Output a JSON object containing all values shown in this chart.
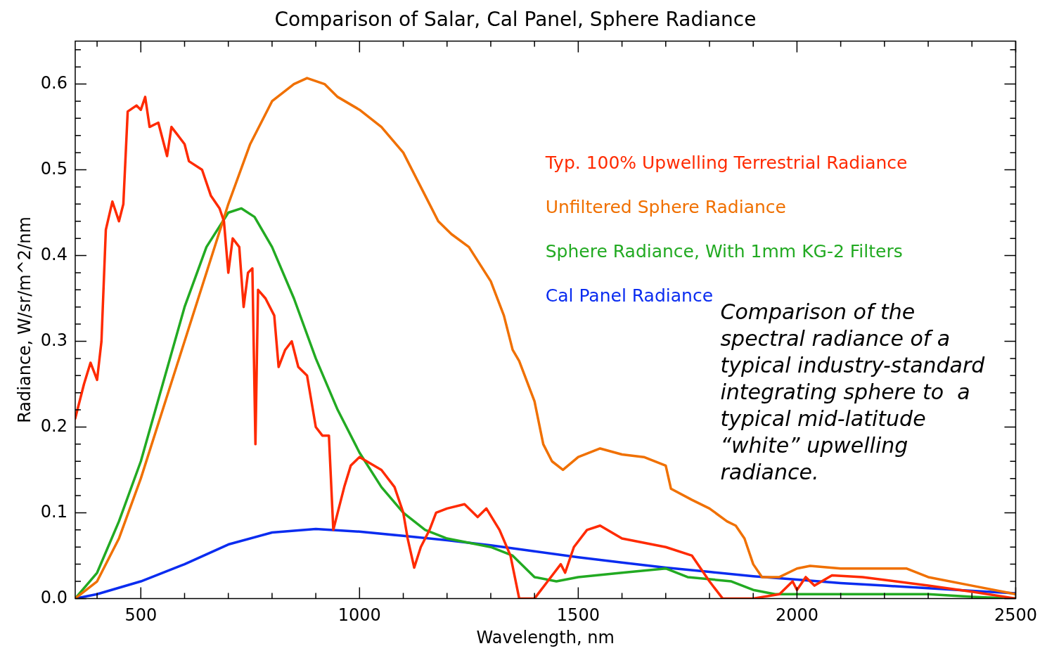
{
  "chart_data": {
    "type": "line",
    "title": "Comparison of Salar, Cal Panel, Sphere Radiance",
    "xlabel": "Wavelength, nm",
    "ylabel": "Radiance, W/sr/m^2/nm",
    "xlim": [
      350,
      2500
    ],
    "xticks": [
      {
        "value": 400,
        "label": null
      },
      {
        "value": 500,
        "label": "500"
      },
      {
        "value": 600,
        "label": null
      },
      {
        "value": 700,
        "label": null
      },
      {
        "value": 800,
        "label": null
      },
      {
        "value": 900,
        "label": null
      },
      {
        "value": 1000,
        "label": "1000"
      },
      {
        "value": 1100,
        "label": null
      },
      {
        "value": 1200,
        "label": null
      },
      {
        "value": 1300,
        "label": null
      },
      {
        "value": 1400,
        "label": null
      },
      {
        "value": 1500,
        "label": "1500"
      },
      {
        "value": 1600,
        "label": null
      },
      {
        "value": 1700,
        "label": null
      },
      {
        "value": 1800,
        "label": null
      },
      {
        "value": 1900,
        "label": null
      },
      {
        "value": 2000,
        "label": "2000"
      },
      {
        "value": 2100,
        "label": null
      },
      {
        "value": 2200,
        "label": null
      },
      {
        "value": 2300,
        "label": null
      },
      {
        "value": 2400,
        "label": null
      },
      {
        "value": 2500,
        "label": "2500"
      }
    ],
    "ylim": [
      0,
      0.65
    ],
    "yticks": [
      {
        "value": 0,
        "label": "0.0"
      },
      {
        "value": 0.02,
        "label": null
      },
      {
        "value": 0.04,
        "label": null
      },
      {
        "value": 0.06,
        "label": null
      },
      {
        "value": 0.08,
        "label": null
      },
      {
        "value": 0.1,
        "label": "0.1"
      },
      {
        "value": 0.12,
        "label": null
      },
      {
        "value": 0.14,
        "label": null
      },
      {
        "value": 0.16,
        "label": null
      },
      {
        "value": 0.18,
        "label": null
      },
      {
        "value": 0.2,
        "label": "0.2"
      },
      {
        "value": 0.22,
        "label": null
      },
      {
        "value": 0.24,
        "label": null
      },
      {
        "value": 0.26,
        "label": null
      },
      {
        "value": 0.28,
        "label": null
      },
      {
        "value": 0.3,
        "label": "0.3"
      },
      {
        "value": 0.32,
        "label": null
      },
      {
        "value": 0.34,
        "label": null
      },
      {
        "value": 0.36,
        "label": null
      },
      {
        "value": 0.38,
        "label": null
      },
      {
        "value": 0.4,
        "label": "0.4"
      },
      {
        "value": 0.42,
        "label": null
      },
      {
        "value": 0.44,
        "label": null
      },
      {
        "value": 0.46,
        "label": null
      },
      {
        "value": 0.48,
        "label": null
      },
      {
        "value": 0.5,
        "label": "0.5"
      },
      {
        "value": 0.52,
        "label": null
      },
      {
        "value": 0.54,
        "label": null
      },
      {
        "value": 0.56,
        "label": null
      },
      {
        "value": 0.58,
        "label": null
      },
      {
        "value": 0.6,
        "label": "0.6"
      },
      {
        "value": 0.62,
        "label": null
      },
      {
        "value": 0.64,
        "label": null
      }
    ],
    "grid": false,
    "legend": "top right",
    "marker": "none",
    "line_style": "solid",
    "annotations": [
      "Comparison of the spectral radiance of a typical industry-standard integrating sphere to  a typical mid-latitude “white” upwelling radiance."
    ],
    "series": [
      {
        "name": "Typ. 100% Upwelling Terrestrial Radiance",
        "color": "#ff2a00",
        "x": [
          350,
          370,
          385,
          400,
          410,
          420,
          435,
          450,
          460,
          470,
          490,
          500,
          510,
          520,
          540,
          560,
          570,
          600,
          610,
          640,
          660,
          680,
          690,
          700,
          710,
          725,
          735,
          745,
          755,
          762,
          768,
          785,
          805,
          815,
          830,
          845,
          860,
          880,
          900,
          915,
          930,
          940,
          950,
          965,
          980,
          1000,
          1050,
          1080,
          1100,
          1110,
          1125,
          1140,
          1160,
          1175,
          1200,
          1240,
          1270,
          1290,
          1320,
          1345,
          1365,
          1400,
          1430,
          1460,
          1470,
          1490,
          1520,
          1550,
          1600,
          1700,
          1760,
          1800,
          1830,
          1900,
          1960,
          1990,
          2000,
          2020,
          2040,
          2080,
          2150,
          2300,
          2400,
          2500
        ],
        "values": [
          0.21,
          0.25,
          0.275,
          0.255,
          0.3,
          0.43,
          0.463,
          0.44,
          0.46,
          0.568,
          0.575,
          0.57,
          0.585,
          0.55,
          0.555,
          0.516,
          0.55,
          0.53,
          0.51,
          0.5,
          0.47,
          0.455,
          0.44,
          0.38,
          0.42,
          0.41,
          0.34,
          0.38,
          0.385,
          0.18,
          0.36,
          0.35,
          0.33,
          0.27,
          0.29,
          0.3,
          0.27,
          0.26,
          0.2,
          0.19,
          0.19,
          0.08,
          0.1,
          0.13,
          0.155,
          0.165,
          0.15,
          0.13,
          0.1,
          0.07,
          0.036,
          0.06,
          0.08,
          0.1,
          0.105,
          0.11,
          0.095,
          0.105,
          0.08,
          0.05,
          0,
          0,
          0.02,
          0.04,
          0.03,
          0.06,
          0.08,
          0.085,
          0.07,
          0.06,
          0.05,
          0.02,
          0,
          0,
          0.005,
          0.02,
          0.01,
          0.025,
          0.015,
          0.027,
          0.025,
          0.015,
          0.008,
          0
        ]
      },
      {
        "name": "Unfiltered Sphere Radiance",
        "color": "#f07000",
        "x": [
          350,
          400,
          450,
          500,
          550,
          600,
          650,
          700,
          750,
          800,
          850,
          880,
          920,
          950,
          1000,
          1050,
          1100,
          1150,
          1180,
          1210,
          1250,
          1300,
          1330,
          1350,
          1365,
          1400,
          1420,
          1440,
          1465,
          1500,
          1550,
          1600,
          1650,
          1700,
          1712,
          1760,
          1800,
          1840,
          1860,
          1880,
          1900,
          1920,
          1960,
          2000,
          2030,
          2100,
          2250,
          2300,
          2400,
          2500
        ],
        "values": [
          0,
          0.02,
          0.07,
          0.14,
          0.22,
          0.3,
          0.38,
          0.46,
          0.53,
          0.58,
          0.6,
          0.607,
          0.6,
          0.585,
          0.57,
          0.55,
          0.52,
          0.47,
          0.44,
          0.425,
          0.41,
          0.37,
          0.33,
          0.29,
          0.277,
          0.23,
          0.18,
          0.16,
          0.15,
          0.165,
          0.175,
          0.168,
          0.165,
          0.155,
          0.128,
          0.115,
          0.105,
          0.09,
          0.085,
          0.07,
          0.04,
          0.025,
          0.025,
          0.035,
          0.038,
          0.035,
          0.035,
          0.025,
          0.015,
          0.005
        ]
      },
      {
        "name": "Sphere Radiance, With 1mm KG-2 Filters",
        "color": "#22aa22",
        "x": [
          350,
          400,
          450,
          500,
          550,
          600,
          650,
          700,
          730,
          760,
          800,
          850,
          900,
          950,
          1000,
          1050,
          1100,
          1150,
          1200,
          1300,
          1350,
          1400,
          1450,
          1500,
          1600,
          1700,
          1750,
          1850,
          1900,
          1950,
          2300,
          2400,
          2500
        ],
        "values": [
          0,
          0.03,
          0.09,
          0.16,
          0.25,
          0.34,
          0.41,
          0.45,
          0.455,
          0.445,
          0.41,
          0.35,
          0.28,
          0.22,
          0.17,
          0.13,
          0.1,
          0.08,
          0.07,
          0.06,
          0.05,
          0.025,
          0.02,
          0.025,
          0.03,
          0.035,
          0.025,
          0.02,
          0.01,
          0.005,
          0.005,
          0.002,
          0
        ]
      },
      {
        "name": "Cal Panel Radiance",
        "color": "#0a2cf0",
        "x": [
          350,
          400,
          500,
          600,
          700,
          800,
          900,
          1000,
          1100,
          1200,
          1300,
          1400,
          1500,
          1600,
          1700,
          1800,
          1900,
          2000,
          2100,
          2200,
          2300,
          2400,
          2500
        ],
        "values": [
          0,
          0.005,
          0.02,
          0.04,
          0.063,
          0.077,
          0.081,
          0.078,
          0.073,
          0.068,
          0.062,
          0.055,
          0.048,
          0.042,
          0.036,
          0.031,
          0.026,
          0.022,
          0.018,
          0.015,
          0.012,
          0.009,
          0.006
        ]
      }
    ]
  }
}
